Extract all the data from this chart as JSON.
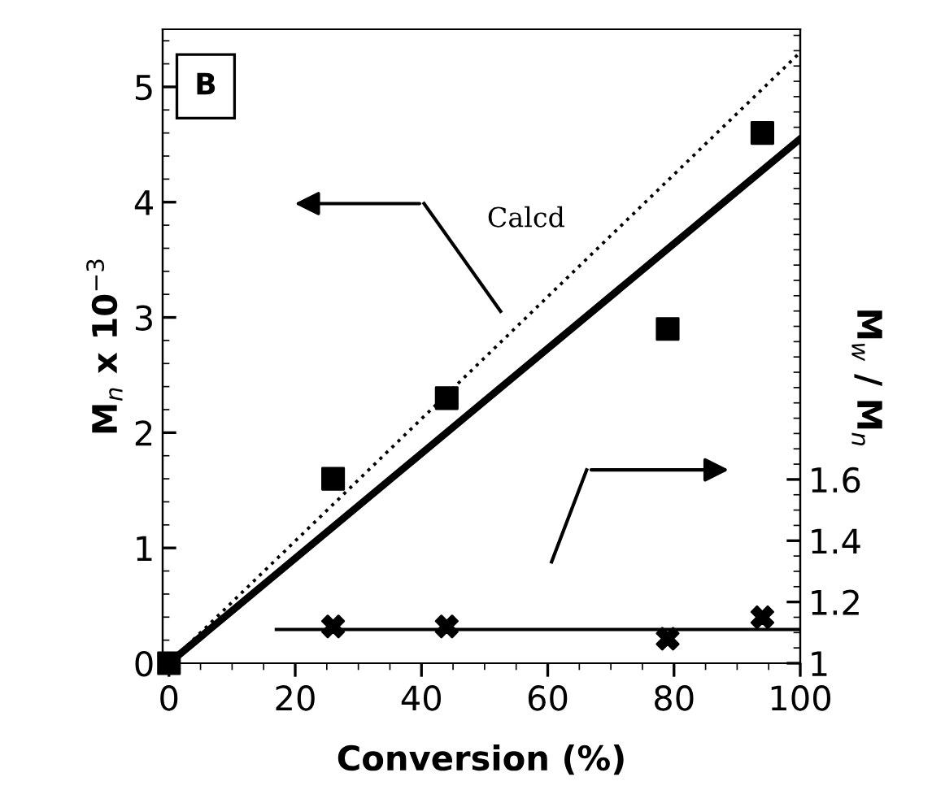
{
  "chart_data": {
    "type": "scatter",
    "xlabel": "Conversion (%)",
    "ylabel": "M$_{n}$ x 10$^{−3}$",
    "y2label": "M$_{w}$ / M$_{n}$",
    "x": [
      0,
      26,
      44,
      79,
      94
    ],
    "series": [
      {
        "color": "#000000",
        "marker": "square",
        "values": [
          0,
          1.6,
          2.3,
          2.9,
          4.6
        ]
      },
      {
        "type": "line",
        "color": "#000000",
        "line_style": "solid",
        "x": [
          0,
          100
        ],
        "values": [
          0,
          4.55
        ]
      },
      {
        "type": "line",
        "color": "#000000",
        "line_style": "dotted",
        "x": [
          0,
          100
        ],
        "values": [
          0,
          5.3
        ]
      },
      {
        "axis": "y2",
        "color": "#000000",
        "marker": "cross",
        "x": [
          26,
          44,
          79,
          94
        ],
        "values": [
          1.12,
          1.12,
          1.08,
          1.15
        ]
      },
      {
        "type": "line",
        "axis": "y2",
        "color": "#000000",
        "line_style": "solid",
        "x": [
          17,
          100
        ],
        "values": [
          1.11,
          1.11
        ]
      }
    ],
    "xlim": [
      -1,
      100
    ],
    "xticks": [
      0,
      20,
      40,
      60,
      80,
      100
    ],
    "ylim": [
      0,
      5.5
    ],
    "yticks": [
      0,
      1,
      2,
      3,
      4,
      5
    ],
    "y2lim": [
      1,
      3.07
    ],
    "y2ticks": [
      1,
      {
        "value": 1.2,
        "label": "1.2"
      },
      {
        "value": 1.4,
        "label": "1.4"
      },
      {
        "value": 1.6,
        "label": "1.6"
      }
    ],
    "grid": false,
    "annotations": [
      "B",
      "Calcd"
    ]
  }
}
